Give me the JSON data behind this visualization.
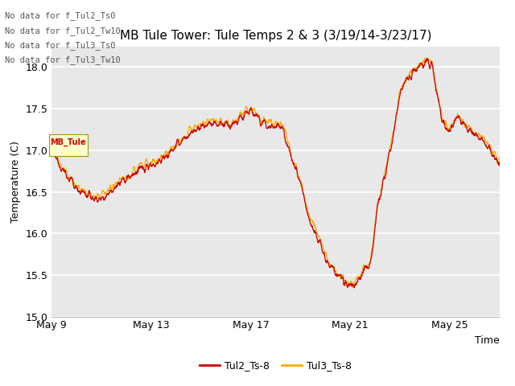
{
  "title": "MB Tule Tower: Tule Temps 2 & 3 (3/19/14-3/23/17)",
  "xlabel": "Time",
  "ylabel": "Temperature (C)",
  "ylim": [
    15.0,
    18.25
  ],
  "yticks": [
    15.0,
    15.5,
    16.0,
    16.5,
    17.0,
    17.5,
    18.0
  ],
  "xtick_labels": [
    "May 9",
    "May 13",
    "May 17",
    "May 21",
    "May 25"
  ],
  "line1_color": "#cc0000",
  "line2_color": "#ffaa00",
  "legend_labels": [
    "Tul2_Ts-8",
    "Tul3_Ts-8"
  ],
  "no_data_texts": [
    "No data for f_Tul2_Ts0",
    "No data for f_Tul2_Tw10",
    "No data for f_Tul3_Ts0",
    "No data for f_Tul3_Tw10"
  ],
  "fig_bg_color": "#ffffff",
  "plot_bg_color": "#e8e8e8",
  "title_fontsize": 11,
  "axis_fontsize": 9,
  "tick_fontsize": 9,
  "keypoints_t": [
    0,
    0.5,
    1.0,
    1.5,
    2.0,
    2.5,
    3.0,
    3.5,
    4.0,
    4.5,
    5.0,
    5.5,
    6.0,
    6.5,
    7.0,
    7.5,
    8.0,
    8.3,
    8.6,
    9.0,
    9.3,
    9.6,
    9.9,
    10.2,
    10.5,
    10.8,
    11.0,
    11.3,
    11.6,
    12.0,
    12.3,
    12.6,
    12.9,
    13.0,
    13.2,
    13.5,
    13.8,
    14.0,
    14.3,
    14.6,
    15.0,
    15.3,
    15.6,
    16.0,
    16.3,
    16.6,
    17.0,
    17.3,
    17.6,
    18.0
  ],
  "keypoints_v": [
    17.0,
    16.75,
    16.55,
    16.45,
    16.42,
    16.55,
    16.65,
    16.75,
    16.82,
    16.9,
    17.05,
    17.18,
    17.28,
    17.32,
    17.3,
    17.35,
    17.47,
    17.38,
    17.32,
    17.28,
    17.25,
    16.95,
    16.7,
    16.35,
    16.08,
    15.88,
    15.72,
    15.56,
    15.45,
    15.38,
    15.42,
    15.58,
    15.8,
    16.1,
    16.45,
    16.85,
    17.3,
    17.65,
    17.85,
    17.95,
    18.05,
    17.98,
    17.5,
    17.25,
    17.38,
    17.3,
    17.18,
    17.12,
    17.0,
    16.85
  ]
}
